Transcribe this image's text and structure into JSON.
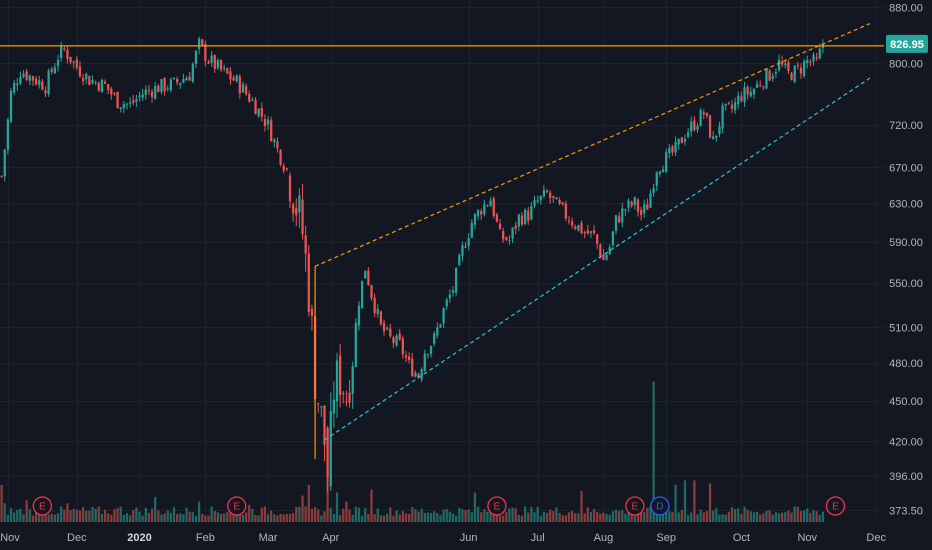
{
  "chart_data": {
    "type": "candlestick",
    "colors": {
      "background": "#131722",
      "grid": "#1e222d",
      "up": "#26a69a",
      "down": "#ef5350",
      "up_volume": "#1f6b64",
      "down_volume": "#8e3b3b",
      "resistance_line": "#ff9800",
      "upper_trendline": "#ff9800",
      "lower_trendline": "#26c6da",
      "last_price_badge": "#26a69a",
      "earnings_event": "#f23645",
      "dividend_event": "#2962ff"
    },
    "x_axis": {
      "labels": [
        "Nov",
        "Dec",
        "2020",
        "Feb",
        "Mar",
        "Apr",
        "Jun",
        "Jul",
        "Aug",
        "Sep",
        "Oct",
        "Nov",
        "Dec"
      ],
      "label_bar_index": [
        2,
        24,
        44,
        65,
        85,
        105,
        149,
        171,
        192,
        212,
        236,
        257,
        279
      ]
    },
    "y_axis": {
      "scale": "log",
      "range": [
        368,
        885
      ],
      "ticks": [
        "880.00",
        "800.00",
        "720.00",
        "670.00",
        "630.00",
        "590.00",
        "550.00",
        "510.00",
        "480.00",
        "450.00",
        "420.00",
        "396.00",
        "373.50"
      ]
    },
    "last_price": "826.95",
    "resistance_level": 824,
    "trendlines": [
      {
        "role": "upper",
        "from": {
          "bar": 100,
          "price": 566
        },
        "to": {
          "bar": 277,
          "price": 856
        }
      },
      {
        "role": "lower",
        "from": {
          "bar": 103,
          "price": 421
        },
        "to": {
          "bar": 277,
          "price": 780
        }
      }
    ],
    "events": [
      {
        "type": "earnings",
        "label": "E",
        "bar": 13
      },
      {
        "type": "earnings",
        "label": "E",
        "bar": 75
      },
      {
        "type": "earnings",
        "label": "E",
        "bar": 158
      },
      {
        "type": "earnings",
        "label": "E",
        "bar": 202
      },
      {
        "type": "dividend",
        "label": "D",
        "bar": 210
      },
      {
        "type": "earnings",
        "label": "E",
        "bar": 266
      }
    ],
    "close_path": [
      [
        0,
        660
      ],
      [
        3,
        760
      ],
      [
        6,
        790
      ],
      [
        10,
        780
      ],
      [
        14,
        770
      ],
      [
        18,
        810
      ],
      [
        20,
        818
      ],
      [
        24,
        795
      ],
      [
        28,
        778
      ],
      [
        33,
        770
      ],
      [
        37,
        750
      ],
      [
        41,
        745
      ],
      [
        45,
        760
      ],
      [
        50,
        768
      ],
      [
        55,
        772
      ],
      [
        60,
        785
      ],
      [
        63,
        825
      ],
      [
        66,
        805
      ],
      [
        70,
        790
      ],
      [
        75,
        775
      ],
      [
        80,
        750
      ],
      [
        85,
        720
      ],
      [
        88,
        690
      ],
      [
        92,
        660
      ],
      [
        96,
        600
      ],
      [
        98,
        545
      ],
      [
        100,
        470
      ],
      [
        103,
        420
      ],
      [
        104,
        388
      ],
      [
        106,
        460
      ],
      [
        108,
        470
      ],
      [
        110,
        455
      ],
      [
        112,
        490
      ],
      [
        114,
        535
      ],
      [
        116,
        565
      ],
      [
        118,
        540
      ],
      [
        121,
        510
      ],
      [
        124,
        500
      ],
      [
        127,
        495
      ],
      [
        130,
        478
      ],
      [
        133,
        470
      ],
      [
        135,
        490
      ],
      [
        138,
        500
      ],
      [
        141,
        525
      ],
      [
        144,
        545
      ],
      [
        147,
        582
      ],
      [
        150,
        610
      ],
      [
        153,
        625
      ],
      [
        156,
        635
      ],
      [
        159,
        595
      ],
      [
        162,
        592
      ],
      [
        165,
        615
      ],
      [
        168,
        618
      ],
      [
        171,
        632
      ],
      [
        174,
        640
      ],
      [
        177,
        628
      ],
      [
        180,
        618
      ],
      [
        183,
        608
      ],
      [
        186,
        600
      ],
      [
        189,
        596
      ],
      [
        192,
        572
      ],
      [
        194,
        585
      ],
      [
        196,
        612
      ],
      [
        199,
        625
      ],
      [
        202,
        630
      ],
      [
        204,
        618
      ],
      [
        206,
        628
      ],
      [
        209,
        670
      ],
      [
        212,
        680
      ],
      [
        215,
        690
      ],
      [
        218,
        710
      ],
      [
        221,
        722
      ],
      [
        224,
        735
      ],
      [
        227,
        700
      ],
      [
        230,
        735
      ],
      [
        233,
        740
      ],
      [
        236,
        758
      ],
      [
        239,
        762
      ],
      [
        242,
        775
      ],
      [
        245,
        785
      ],
      [
        248,
        800
      ],
      [
        251,
        785
      ],
      [
        254,
        790
      ],
      [
        257,
        803
      ],
      [
        260,
        800
      ],
      [
        262,
        826.95
      ]
    ],
    "volume_spikes": [
      [
        0,
        390
      ],
      [
        1,
        378
      ],
      [
        8,
        380
      ],
      [
        21,
        378
      ],
      [
        38,
        376
      ],
      [
        49,
        382
      ],
      [
        63,
        379
      ],
      [
        79,
        377
      ],
      [
        96,
        383
      ],
      [
        98,
        390
      ],
      [
        104,
        395
      ],
      [
        107,
        385
      ],
      [
        110,
        379
      ],
      [
        118,
        387
      ],
      [
        151,
        385
      ],
      [
        185,
        386
      ],
      [
        208,
        465
      ],
      [
        215,
        390
      ],
      [
        218,
        393
      ],
      [
        221,
        393
      ],
      [
        226,
        391
      ],
      [
        264,
        380
      ]
    ]
  }
}
